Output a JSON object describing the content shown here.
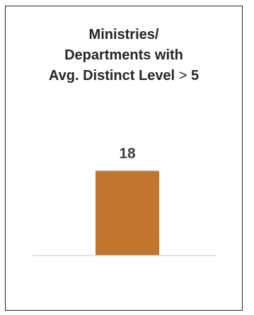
{
  "chart_data": {
    "type": "bar",
    "title": {
      "line1": "Ministries/",
      "line2": "Departments with",
      "line3_prefix": "Avg. Distinct Level",
      "line3_operator": ">",
      "line3_value": "5"
    },
    "categories": [
      ""
    ],
    "values": [
      18
    ],
    "data_labels": [
      "18"
    ],
    "xlabel": "",
    "ylabel": "",
    "ylim": [
      0,
      20
    ],
    "grid": false,
    "legend": "none",
    "colors": {
      "bar": "#C0762F",
      "label": "#404040",
      "axis": "#D9D9D9",
      "frame": "#262626",
      "title": "#262626"
    }
  }
}
